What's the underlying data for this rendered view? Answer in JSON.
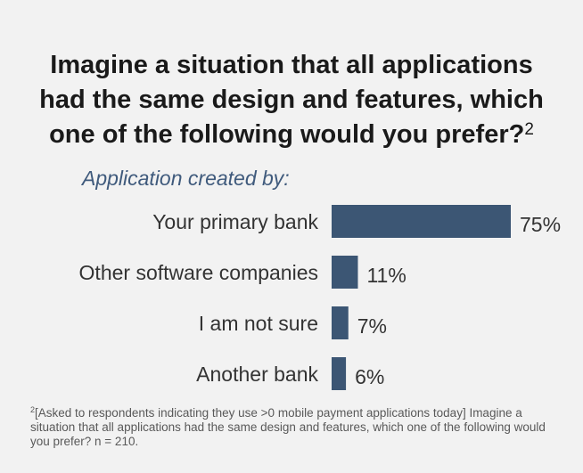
{
  "title": {
    "line1": "Imagine a situation that all applications",
    "line2": "had the same design and features, which",
    "line3": "one of the following would you prefer?",
    "superscript": "2"
  },
  "chart_data": {
    "type": "bar",
    "orientation": "horizontal",
    "subtitle": "Application created by:",
    "categories": [
      "Your primary bank",
      "Other software companies",
      "I am not sure",
      "Another bank"
    ],
    "values": [
      75,
      11,
      7,
      6
    ],
    "value_labels": [
      "75%",
      "11%",
      "7%",
      "6%"
    ],
    "unit": "%",
    "xlim": [
      0,
      75
    ],
    "grid": false,
    "legend": "none",
    "bar_color": "#3c5674"
  },
  "footnote": {
    "marker": "2",
    "text": "[Asked to respondents indicating they use >0 mobile payment applications today] Imagine a situation that all applications had the same design and features, which one of the following would you prefer? n = 210."
  },
  "colors": {
    "background": "#f2f2f2",
    "title": "#1a1a1a",
    "subtitle": "#3f5a7c",
    "label": "#333333"
  }
}
